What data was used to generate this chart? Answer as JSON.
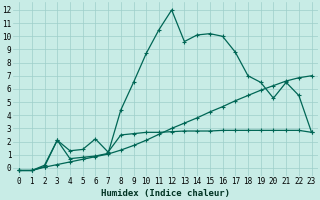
{
  "xlabel": "Humidex (Indice chaleur)",
  "bg_color": "#c8ece6",
  "grid_color": "#9ecfca",
  "line_color": "#006655",
  "xlim": [
    -0.5,
    23.5
  ],
  "ylim": [
    -0.6,
    12.6
  ],
  "xticks": [
    0,
    1,
    2,
    3,
    4,
    5,
    6,
    7,
    8,
    9,
    10,
    11,
    12,
    13,
    14,
    15,
    16,
    17,
    18,
    19,
    20,
    21,
    22,
    23
  ],
  "yticks": [
    0,
    1,
    2,
    3,
    4,
    5,
    6,
    7,
    8,
    9,
    10,
    11,
    12
  ],
  "line1_x": [
    0,
    1,
    2,
    3,
    4,
    5,
    6,
    7,
    8,
    9,
    10,
    11,
    12,
    13,
    14,
    15,
    16,
    17,
    18,
    19,
    20,
    21,
    22,
    23
  ],
  "line1_y": [
    -0.2,
    -0.2,
    0.2,
    2.1,
    0.7,
    0.8,
    0.9,
    1.1,
    4.4,
    6.5,
    8.7,
    10.5,
    12.0,
    9.6,
    10.1,
    10.2,
    10.0,
    8.8,
    7.0,
    6.5,
    5.3,
    6.5,
    5.5,
    2.7
  ],
  "line2_x": [
    0,
    1,
    2,
    3,
    4,
    5,
    6,
    7,
    8,
    9,
    10,
    11,
    12,
    13,
    14,
    15,
    16,
    17,
    18,
    19,
    20,
    21,
    22,
    23
  ],
  "line2_y": [
    -0.2,
    -0.2,
    0.1,
    2.1,
    1.3,
    1.4,
    2.2,
    1.2,
    2.5,
    2.6,
    2.7,
    2.7,
    2.75,
    2.8,
    2.8,
    2.8,
    2.85,
    2.85,
    2.85,
    2.85,
    2.85,
    2.85,
    2.85,
    2.7
  ],
  "line3_x": [
    0,
    1,
    2,
    3,
    4,
    5,
    6,
    7,
    8,
    9,
    10,
    11,
    12,
    13,
    14,
    15,
    16,
    17,
    18,
    19,
    20,
    21,
    22,
    23
  ],
  "line3_y": [
    -0.2,
    -0.2,
    0.05,
    0.25,
    0.45,
    0.65,
    0.85,
    1.05,
    1.35,
    1.7,
    2.1,
    2.55,
    3.0,
    3.4,
    3.8,
    4.25,
    4.65,
    5.1,
    5.5,
    5.9,
    6.25,
    6.6,
    6.85,
    7.0
  ],
  "xlabel_fontsize": 6.5,
  "tick_fontsize": 5.5,
  "linewidth": 0.9,
  "markersize": 2.5
}
